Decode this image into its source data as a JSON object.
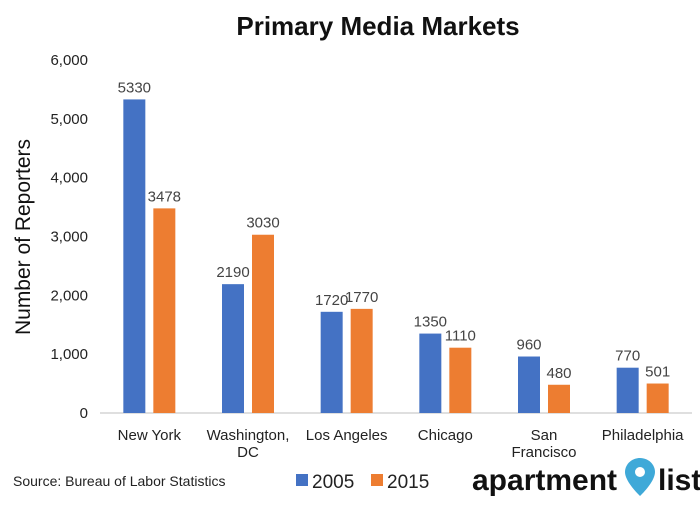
{
  "chart_data": {
    "type": "bar",
    "title": "Primary Media Markets",
    "ylabel": "Number of Reporters",
    "xlabel": "",
    "ylim": [
      0,
      6000
    ],
    "yticks": [
      "0",
      "1,000",
      "2,000",
      "3,000",
      "4,000",
      "5,000",
      "6,000"
    ],
    "categories": [
      [
        "New York"
      ],
      [
        "Washington,",
        "DC"
      ],
      [
        "Los Angeles"
      ],
      [
        "Chicago"
      ],
      [
        "San",
        "Francisco"
      ],
      [
        "Philadelphia"
      ]
    ],
    "series": [
      {
        "name": "2005",
        "color": "#4472C4",
        "values": [
          5330,
          2190,
          1720,
          1350,
          960,
          770
        ]
      },
      {
        "name": "2015",
        "color": "#ED7D31",
        "values": [
          3478,
          3030,
          1770,
          1110,
          480,
          501
        ]
      }
    ],
    "grid": false,
    "legend": "bottom"
  },
  "source": "Source: Bureau of Labor Statistics",
  "logo": {
    "left": "apartment",
    "right": "list",
    "pin_color": "#3fa9d8"
  }
}
